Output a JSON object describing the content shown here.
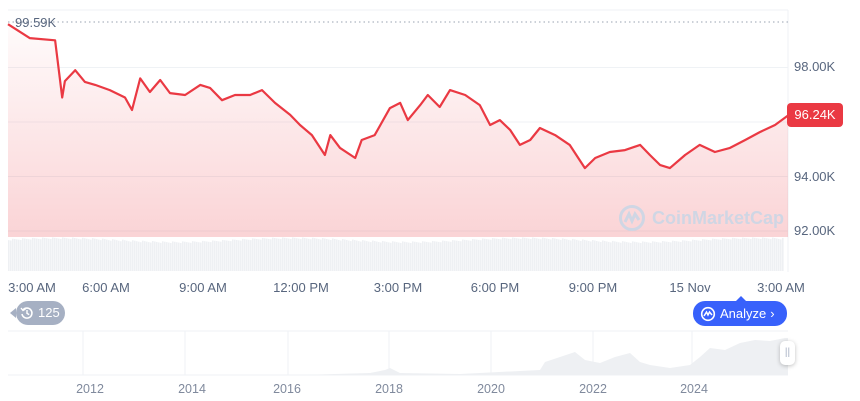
{
  "chart_data": {
    "type": "area",
    "series": [
      {
        "x": [
          "Nov 14 03:00",
          "Nov 14 03:40",
          "Nov 14 04:27",
          "Nov 14 04:40",
          "Nov 14 04:45",
          "Nov 14 05:04",
          "Nov 14 05:22",
          "Nov 14 05:41",
          "Nov 14 06:08",
          "Nov 14 06:36",
          "Nov 14 06:49",
          "Nov 14 07:04",
          "Nov 14 07:22",
          "Nov 14 07:41",
          "Nov 14 07:59",
          "Nov 14 08:27",
          "Nov 14 08:55",
          "Nov 14 09:13",
          "Nov 14 09:35",
          "Nov 14 09:59",
          "Nov 14 10:27",
          "Nov 14 10:49",
          "Nov 14 11:13",
          "Nov 14 11:41",
          "Nov 14 11:59",
          "Nov 14 12:21",
          "Nov 14 12:45",
          "Nov 14 12:55",
          "Nov 14 13:13",
          "Nov 14 13:41",
          "Nov 14 13:53",
          "Nov 14 14:17",
          "Nov 14 14:45",
          "Nov 14 15:04",
          "Nov 14 15:18",
          "Nov 14 15:41",
          "Nov 14 15:55",
          "Nov 14 16:17",
          "Nov 14 16:36",
          "Nov 14 17:04",
          "Nov 14 17:31",
          "Nov 14 17:50",
          "Nov 14 18:08",
          "Nov 14 18:27",
          "Nov 14 18:45",
          "Nov 14 19:04",
          "Nov 14 19:22",
          "Nov 14 19:50",
          "Nov 14 20:17",
          "Nov 14 20:45",
          "Nov 14 21:04",
          "Nov 14 21:31",
          "Nov 14 21:59",
          "Nov 14 22:27",
          "Nov 14 22:45",
          "Nov 14 23:04",
          "Nov 14 23:22",
          "Nov 14 23:50",
          "Nov 15 00:17",
          "Nov 15 00:45",
          "Nov 15 01:13",
          "Nov 15 01:41",
          "Nov 15 02:08",
          "Nov 15 02:36",
          "Nov 15 03:00"
        ],
        "values": [
          99.59,
          99.08,
          99.0,
          96.9,
          97.5,
          97.9,
          97.47,
          97.36,
          97.17,
          96.9,
          96.44,
          97.6,
          97.1,
          97.54,
          97.06,
          96.99,
          97.36,
          97.25,
          96.8,
          96.99,
          96.99,
          97.17,
          96.7,
          96.26,
          95.89,
          95.52,
          94.79,
          95.52,
          95.05,
          94.68,
          95.34,
          95.52,
          96.51,
          96.7,
          96.07,
          96.62,
          96.99,
          96.55,
          97.17,
          96.99,
          96.62,
          95.89,
          96.07,
          95.71,
          95.16,
          95.34,
          95.78,
          95.52,
          95.16,
          94.31,
          94.68,
          94.9,
          94.97,
          95.16,
          94.79,
          94.42,
          94.31,
          94.79,
          95.16,
          94.9,
          95.05,
          95.34,
          95.63,
          95.89,
          96.24
        ]
      }
    ],
    "ylim": [
      91.0,
      100.0
    ],
    "y_unit": "K",
    "y_ticks": [
      "98.00K",
      "94.00K",
      "92.00K"
    ],
    "x_ticks": [
      "3:00 AM",
      "6:00 AM",
      "9:00 AM",
      "12:00 PM",
      "3:00 PM",
      "6:00 PM",
      "9:00 PM",
      "15 Nov",
      "3:00 AM"
    ],
    "high_label": "99.59K",
    "current_price_label": "96.24K",
    "line_color": "#ea3943",
    "grid": true,
    "navigator_years": [
      "2012",
      "2014",
      "2016",
      "2018",
      "2020",
      "2022",
      "2024"
    ]
  },
  "watermark": "CoinMarketCap",
  "history_badge": {
    "count": "125",
    "icon": "history-clock-icon"
  },
  "analyze_button": {
    "label": "Analyze",
    "icon": "cmc-ai-icon",
    "color": "#3861fb"
  }
}
